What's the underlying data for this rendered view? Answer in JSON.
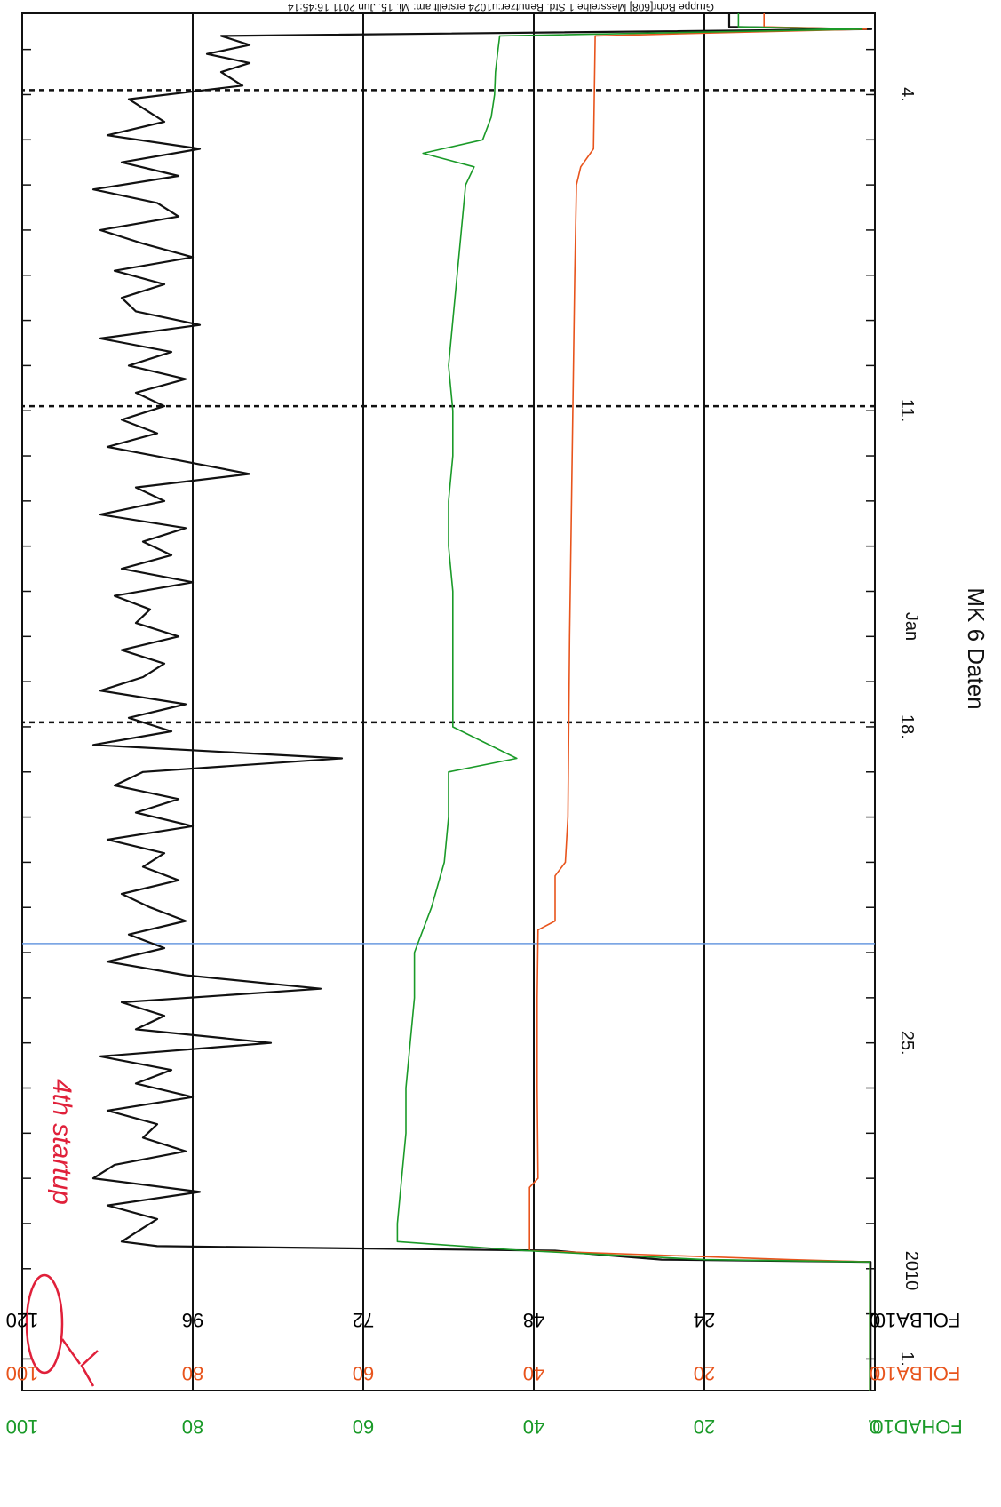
{
  "header_text": "Gruppe Bohr[608]  Messreihe 1 Std. Benutzer:u1024  erstellt am: Mi. 15. Jun 2011 16:45:14",
  "title": "MK 6 Daten",
  "x_axis": {
    "label": "Jan",
    "year": "2010",
    "ticks": [
      "4.",
      "11.",
      "18.",
      "25.",
      "1."
    ]
  },
  "y_axes": [
    {
      "name": "FOLBA10.",
      "color": "#000000",
      "ticks": [
        "0",
        "24",
        "48",
        "72",
        "96",
        "120"
      ]
    },
    {
      "name": "FOLBA10.",
      "color": "#e8541c",
      "ticks": [
        "0",
        "20",
        "40",
        "60",
        "80",
        "100"
      ]
    },
    {
      "name": "FOHAD10.",
      "color": "#1a9a28",
      "ticks": [
        "0",
        "20",
        "40",
        "60",
        "80",
        "100"
      ]
    }
  ],
  "annotation": {
    "text": "4th startup",
    "color": "#e0203a"
  },
  "colors": {
    "black": "#111111",
    "orange": "#e8541c",
    "green": "#1a9a28",
    "marker": "#6a9ae0"
  },
  "chart_data": {
    "type": "line",
    "title": "MK 6 Daten",
    "xlabel": "Jan",
    "x_unit": "day",
    "xlim": [
      2.2,
      32.7
    ],
    "dashed_vlines": [
      3.9,
      10.9,
      17.9
    ],
    "marker_vline": 22.8,
    "y_axes": [
      {
        "name": "FOLBA10.",
        "ylim": [
          0,
          120
        ]
      },
      {
        "name": "FOLBA10.",
        "ylim": [
          0,
          100
        ]
      },
      {
        "name": "FOHAD10.",
        "ylim": [
          0,
          100
        ]
      }
    ],
    "series": [
      {
        "name": "FOLBA10.",
        "color": "#111111",
        "axis": 0,
        "x": [
          2.2,
          2.5,
          2.55,
          2.7,
          2.9,
          3.1,
          3.3,
          3.5,
          3.8,
          4.1,
          4.3,
          4.6,
          4.9,
          5.2,
          5.5,
          5.8,
          6.1,
          6.4,
          6.7,
          7.0,
          7.3,
          7.6,
          7.9,
          8.2,
          8.5,
          8.8,
          9.1,
          9.4,
          9.7,
          10.0,
          10.3,
          10.6,
          10.9,
          11.2,
          11.5,
          11.8,
          12.1,
          12.4,
          12.7,
          13.0,
          13.3,
          13.6,
          13.9,
          14.2,
          14.5,
          14.8,
          15.1,
          15.4,
          15.7,
          16.0,
          16.3,
          16.6,
          16.9,
          17.2,
          17.5,
          17.8,
          18.1,
          18.4,
          18.7,
          19.0,
          19.3,
          19.6,
          19.9,
          20.2,
          20.5,
          20.8,
          21.1,
          21.4,
          21.7,
          22.0,
          22.3,
          22.6,
          22.9,
          23.2,
          23.5,
          23.8,
          24.1,
          24.4,
          24.7,
          25.0,
          25.3,
          25.6,
          25.9,
          26.2,
          26.5,
          26.8,
          27.1,
          27.4,
          27.7,
          28.0,
          28.3,
          28.6,
          28.9,
          29.2,
          29.4,
          29.5,
          29.6,
          29.7,
          29.8,
          29.85,
          30.1,
          30.5,
          31.0,
          31.5,
          32.0,
          32.7
        ],
        "values": [
          20.5,
          20.5,
          0.5,
          92,
          88,
          94,
          88,
          92,
          89,
          105,
          103,
          100,
          108,
          95,
          106,
          98,
          110,
          101,
          98,
          109,
          103,
          96,
          107,
          100,
          106,
          104,
          95,
          109,
          99,
          105,
          97,
          104,
          100,
          106,
          101,
          108,
          98,
          88,
          104,
          100,
          109,
          97,
          103,
          99,
          106,
          96,
          107,
          102,
          104,
          98,
          106,
          100,
          103,
          109,
          97,
          105,
          99,
          110,
          75,
          103,
          107,
          98,
          104,
          96,
          108,
          100,
          103,
          98,
          106,
          102,
          97,
          105,
          100,
          108,
          97,
          78,
          106,
          100,
          104,
          85,
          109,
          99,
          104,
          96,
          108,
          101,
          103,
          97,
          107,
          110,
          95,
          108,
          101,
          104,
          106,
          101,
          45,
          38,
          30,
          0.6,
          0.6,
          0.6,
          0.6,
          0.6,
          0.6,
          0.6
        ]
      },
      {
        "name": "FOLBA10.",
        "color": "#e8541c",
        "axis": 1,
        "x": [
          2.2,
          2.5,
          2.55,
          2.7,
          5.2,
          5.6,
          6.0,
          8.0,
          12.0,
          16.0,
          20.0,
          21.0,
          21.3,
          22.3,
          22.5,
          24.0,
          26.0,
          28.0,
          28.2,
          29.6,
          29.8,
          29.85,
          30.5,
          31.5,
          32.7
        ],
        "values": [
          13,
          13,
          1,
          32.8,
          33,
          34.5,
          35,
          35.2,
          35.5,
          35.8,
          36,
          36.3,
          37.5,
          37.5,
          39.5,
          39.6,
          39.6,
          39.5,
          40.5,
          40.5,
          10,
          0.6,
          0.6,
          0.6,
          0.6
        ]
      },
      {
        "name": "FOHAD10.",
        "color": "#1a9a28",
        "axis": 2,
        "x": [
          2.2,
          2.5,
          2.55,
          2.7,
          3.0,
          3.5,
          4.0,
          4.5,
          5.0,
          5.3,
          5.6,
          6.0,
          7.0,
          8.0,
          9.0,
          10.0,
          11.0,
          12.0,
          13.0,
          14.0,
          15.0,
          16.0,
          17.0,
          18.0,
          18.7,
          19.0,
          20.0,
          21.0,
          22.0,
          23.0,
          24.0,
          25.0,
          26.0,
          27.0,
          28.0,
          29.0,
          29.4,
          29.6,
          29.8,
          29.85,
          30.5,
          31.5,
          32.7
        ],
        "values": [
          16,
          16,
          1.5,
          44,
          44.2,
          44.5,
          44.6,
          45,
          46,
          53,
          47,
          48,
          48.5,
          49,
          49.5,
          50,
          49.5,
          49.5,
          50,
          50,
          49.5,
          49.5,
          49.5,
          49.5,
          42,
          50,
          50,
          50.5,
          52,
          54,
          54,
          54.5,
          55,
          55,
          55.5,
          56,
          56,
          41,
          20,
          0.6,
          0.6,
          0.6,
          0.6
        ]
      }
    ]
  }
}
